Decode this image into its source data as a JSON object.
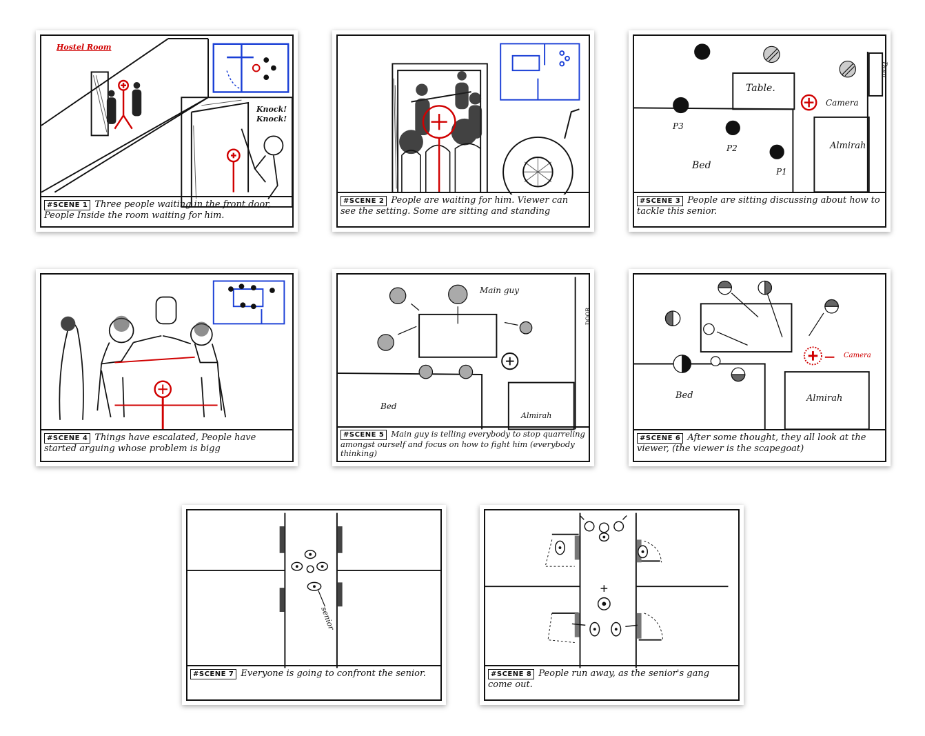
{
  "colors": {
    "ink": "#111111",
    "red": "#d00000",
    "blue": "#1a3fd6"
  },
  "scenes": [
    {
      "tag": "#SCENE 1",
      "caption": "Three people waiting in the front door, People Inside the room waiting for him.",
      "labels": {
        "room": "Hostel Room",
        "knock": "Knock! Knock!"
      }
    },
    {
      "tag": "#SCENE 2",
      "caption": "People are waiting for him. Viewer can see the setting. Some are sitting and standing"
    },
    {
      "tag": "#SCENE 3",
      "caption": "People are sitting discussing about how to tackle this senior.",
      "labels": {
        "table": "Table.",
        "camera": "Camera",
        "door": "Door",
        "p1": "P1",
        "p2": "P2",
        "p3": "P3",
        "bed": "Bed",
        "almirah": "Almirah"
      }
    },
    {
      "tag": "#SCENE 4",
      "caption": "Things have escalated, People have started arguing whose problem is bigg"
    },
    {
      "tag": "#SCENE 5",
      "caption": "Main guy is telling everybody to stop quarreling amongst ourself and focus on how to fight him (everybody thinking)",
      "labels": {
        "main_guy": "Main guy",
        "door": "DOOR",
        "bed": "Bed",
        "almirah": "Almirah"
      }
    },
    {
      "tag": "#SCENE 6",
      "caption": "After some thought, they all look at the viewer, (the viewer is the scapegoat)",
      "labels": {
        "camera": "Camera",
        "bed": "Bed",
        "almirah": "Almirah"
      }
    },
    {
      "tag": "#SCENE 7",
      "caption": "Everyone is going to confront the senior.",
      "labels": {
        "senior": "senior"
      }
    },
    {
      "tag": "#SCENE 8",
      "caption": "People run away, as the senior's gang come out."
    }
  ]
}
